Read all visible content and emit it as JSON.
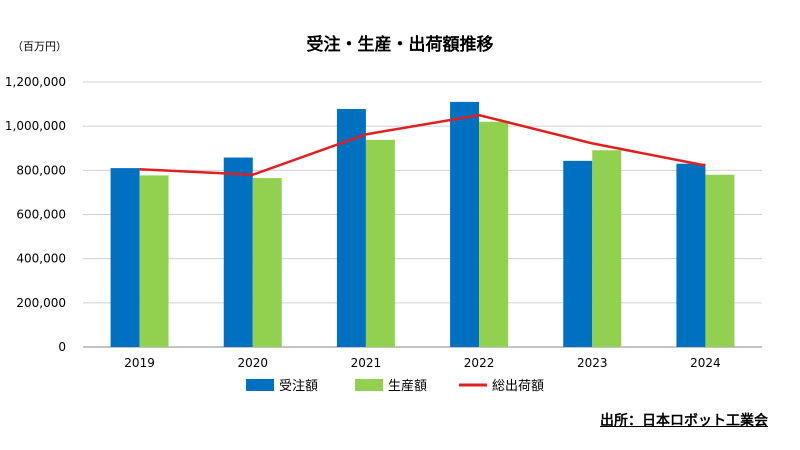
{
  "chart_data": {
    "type": "bar",
    "title": "受注・生産・出荷額推移",
    "unit_label": "（百万円）",
    "categories": [
      "2019",
      "2020",
      "2021",
      "2022",
      "2023",
      "2024"
    ],
    "series": [
      {
        "name": "受注額",
        "kind": "bar",
        "color": "#0070C0",
        "values": [
          810000,
          858000,
          1078000,
          1110000,
          843000,
          830000
        ]
      },
      {
        "name": "生産額",
        "kind": "bar",
        "color": "#92D050",
        "values": [
          777000,
          765000,
          938000,
          1020000,
          891000,
          780000
        ]
      },
      {
        "name": "総出荷額",
        "kind": "line",
        "color": "#E02020",
        "values": [
          805000,
          780000,
          963000,
          1050000,
          922000,
          822000
        ]
      }
    ],
    "ylim": [
      0,
      1200000
    ],
    "yticks": [
      0,
      200000,
      400000,
      600000,
      800000,
      1000000,
      1200000
    ],
    "grid": true,
    "legend_position": "bottom"
  },
  "source": "出所：日本ロボット工業会"
}
